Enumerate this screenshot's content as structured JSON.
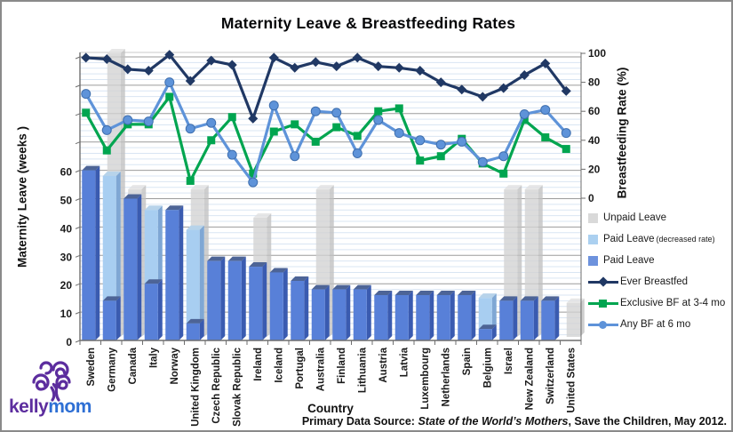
{
  "title": "Maternity Leave & Breastfeeding Rates",
  "y_left": {
    "title": "Maternity Leave (weeks )",
    "ticks": [
      0,
      10,
      20,
      30,
      40,
      50,
      60
    ],
    "max_weeks": 100
  },
  "y_right": {
    "title": "Breastfeeding Rate (%)",
    "ticks": [
      0,
      20,
      40,
      60,
      80,
      100
    ]
  },
  "x_axis": {
    "title": "Country"
  },
  "source": {
    "prefix": "Primary Data Source: ",
    "book": "State of the World’s Mothers",
    "suffix": ", Save the Children, May 2012."
  },
  "logo": {
    "kelly": "kelly",
    "mom": "mom"
  },
  "legend": [
    {
      "type": "swatch",
      "label": "Unpaid Leave",
      "color": "#d9d9d9"
    },
    {
      "type": "swatch",
      "label": "Paid Leave",
      "sublabel": "(decreased rate)",
      "color": "#abd0f0"
    },
    {
      "type": "swatch",
      "label": "Paid Leave",
      "color": "#6d92dd"
    },
    {
      "type": "line",
      "label": "Ever Breastfed",
      "color": "#203864",
      "marker": "diamond"
    },
    {
      "type": "line",
      "label": "Exclusive BF at 3-4 mo",
      "color": "#00a550",
      "marker": "square"
    },
    {
      "type": "line",
      "label": "Any BF at 6 mo",
      "color": "#5e93d9",
      "marker": "circle"
    }
  ],
  "chart_data": {
    "type": "bar+line combo (stacked 3D columns, left axis weeks; lines, right axis percent)",
    "categories": [
      "Sweden",
      "Germany",
      "Canada",
      "Italy",
      "Norway",
      "United Kingdom",
      "Czech Republic",
      "Slovak Republic",
      "Ireland",
      "Iceland",
      "Portugal",
      "Australia",
      "Finland",
      "Lithuania",
      "Austria",
      "Latvia",
      "Luxembourg",
      "Netherlands",
      "Spain",
      "Belgium",
      "Israel",
      "New Zealand",
      "Switzerland",
      "United States"
    ],
    "bars": {
      "axis": "left",
      "unit": "weeks",
      "paid_leave": [
        60,
        14,
        50,
        20,
        46,
        6,
        28,
        28,
        26,
        24,
        21,
        18,
        18,
        18,
        16,
        16,
        16,
        16,
        16,
        4,
        14,
        14,
        14,
        0
      ],
      "paid_leave_decreased_to": [
        null,
        58,
        null,
        46,
        null,
        39,
        null,
        null,
        null,
        null,
        null,
        null,
        null,
        null,
        null,
        null,
        null,
        null,
        null,
        15,
        null,
        null,
        null,
        null
      ],
      "unpaid_leave_to": [
        null,
        100,
        52,
        null,
        null,
        52,
        null,
        null,
        42,
        null,
        null,
        52,
        null,
        null,
        null,
        null,
        null,
        null,
        null,
        null,
        52,
        52,
        null,
        12
      ],
      "colors": {
        "paid": {
          "front": "#5880d8",
          "side": "#3a5bb0",
          "top": "#4d6496"
        },
        "decreased": {
          "front": "#a8cef1",
          "side": "#7fa7d4",
          "top": "#b7d3ea"
        },
        "unpaid": {
          "front": "#d2d2d2",
          "side": "#c0c0c0",
          "top": "#e0e0e0"
        }
      }
    },
    "lines": {
      "axis": "right",
      "unit": "percent",
      "ylim": [
        0,
        100
      ],
      "series": [
        {
          "name": "Ever Breastfed",
          "color": "#203864",
          "marker": "diamond",
          "values": [
            97,
            96,
            89,
            88,
            99,
            81,
            95,
            92,
            55,
            97,
            90,
            94,
            91,
            97,
            91,
            90,
            88,
            80,
            75,
            70,
            76,
            85,
            93,
            74
          ]
        },
        {
          "name": "Exclusive BF at 3-4 mo",
          "color": "#00a550",
          "marker": "square",
          "values": [
            59,
            33,
            51,
            51,
            70,
            12,
            40,
            56,
            17,
            46,
            51,
            39,
            49,
            43,
            60,
            62,
            26,
            29,
            41,
            24,
            17,
            54,
            42,
            34
          ]
        },
        {
          "name": "Any BF at 6 mo",
          "color": "#5e93d9",
          "marker": "circle",
          "marker_stroke": "#3f6fae",
          "values": [
            72,
            47,
            54,
            53,
            80,
            48,
            52,
            30,
            11,
            64,
            29,
            60,
            59,
            31,
            54,
            45,
            40,
            37,
            39,
            25,
            29,
            58,
            61,
            45
          ]
        }
      ]
    },
    "grid": {
      "minor_color": "#d9e5f3",
      "major_color": "#9b9b9b",
      "axis_color": "#6e6e6e",
      "minor_step_weeks": 2,
      "major_step_weeks": 10
    }
  }
}
